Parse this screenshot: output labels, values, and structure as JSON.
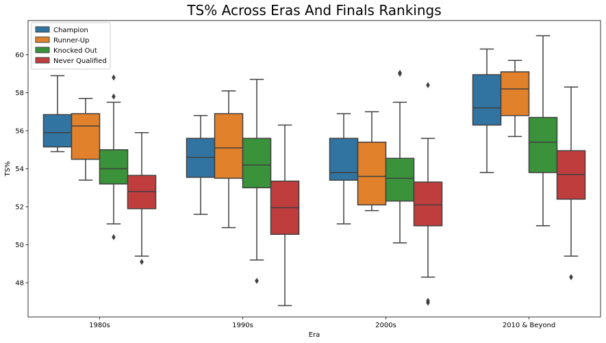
{
  "chart_data": {
    "type": "box",
    "title": "TS% Across Eras And Finals Rankings",
    "xlabel": "Era",
    "ylabel": "TS%",
    "categories": [
      "1980s",
      "1990s",
      "2000s",
      "2010 & Beyond"
    ],
    "ylim": [
      46.2,
      61.8
    ],
    "yticks": [
      48,
      50,
      52,
      54,
      56,
      58,
      60
    ],
    "grid": false,
    "legend_position": "top-left",
    "series": [
      {
        "name": "Champion",
        "color": "#3274a1",
        "boxes": [
          {
            "whisker_low": 54.9,
            "q1": 55.15,
            "median": 55.9,
            "q3": 56.85,
            "whisker_high": 58.9,
            "outliers": []
          },
          {
            "whisker_low": 51.6,
            "q1": 53.55,
            "median": 54.6,
            "q3": 55.6,
            "whisker_high": 56.8,
            "outliers": []
          },
          {
            "whisker_low": 51.1,
            "q1": 53.4,
            "median": 53.8,
            "q3": 55.6,
            "whisker_high": 56.9,
            "outliers": []
          },
          {
            "whisker_low": 53.8,
            "q1": 56.3,
            "median": 57.2,
            "q3": 58.95,
            "whisker_high": 60.3,
            "outliers": []
          }
        ]
      },
      {
        "name": "Runner-Up",
        "color": "#e1812c",
        "boxes": [
          {
            "whisker_low": 53.4,
            "q1": 54.5,
            "median": 56.25,
            "q3": 56.9,
            "whisker_high": 57.7,
            "outliers": []
          },
          {
            "whisker_low": 50.9,
            "q1": 53.5,
            "median": 55.1,
            "q3": 56.9,
            "whisker_high": 58.1,
            "outliers": []
          },
          {
            "whisker_low": 51.8,
            "q1": 52.1,
            "median": 53.6,
            "q3": 55.4,
            "whisker_high": 57.0,
            "outliers": []
          },
          {
            "whisker_low": 55.7,
            "q1": 56.8,
            "median": 58.2,
            "q3": 59.1,
            "whisker_high": 59.7,
            "outliers": []
          }
        ]
      },
      {
        "name": "Knocked Out",
        "color": "#3a923a",
        "boxes": [
          {
            "whisker_low": 51.1,
            "q1": 53.2,
            "median": 54.0,
            "q3": 55.0,
            "whisker_high": 57.5,
            "outliers": [
              50.4,
              57.8,
              58.8
            ]
          },
          {
            "whisker_low": 49.2,
            "q1": 53.0,
            "median": 54.2,
            "q3": 55.6,
            "whisker_high": 58.7,
            "outliers": [
              48.1
            ]
          },
          {
            "whisker_low": 50.1,
            "q1": 52.3,
            "median": 53.5,
            "q3": 54.55,
            "whisker_high": 57.5,
            "outliers": [
              59.0,
              59.05
            ]
          },
          {
            "whisker_low": 51.0,
            "q1": 53.8,
            "median": 55.4,
            "q3": 56.7,
            "whisker_high": 61.0,
            "outliers": []
          }
        ]
      },
      {
        "name": "Never Qualified",
        "color": "#c03d3e",
        "boxes": [
          {
            "whisker_low": 49.4,
            "q1": 51.9,
            "median": 52.8,
            "q3": 53.65,
            "whisker_high": 55.9,
            "outliers": [
              49.1
            ]
          },
          {
            "whisker_low": 46.8,
            "q1": 50.55,
            "median": 51.95,
            "q3": 53.35,
            "whisker_high": 56.3,
            "outliers": []
          },
          {
            "whisker_low": 48.3,
            "q1": 51.0,
            "median": 52.1,
            "q3": 53.3,
            "whisker_high": 55.6,
            "outliers": [
              46.95,
              47.05,
              58.4
            ]
          },
          {
            "whisker_low": 49.4,
            "q1": 52.4,
            "median": 53.7,
            "q3": 54.95,
            "whisker_high": 58.3,
            "outliers": [
              48.3
            ]
          }
        ]
      }
    ]
  }
}
